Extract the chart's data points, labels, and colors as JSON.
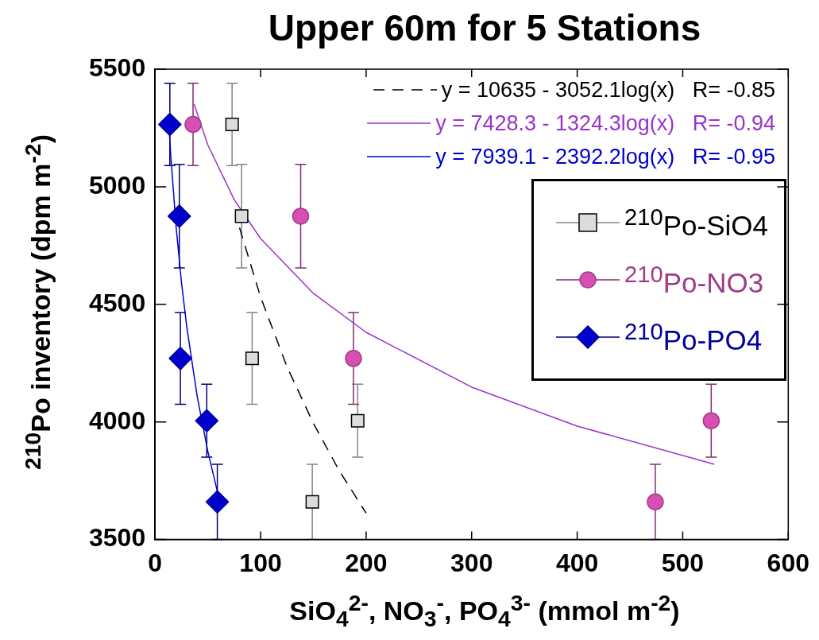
{
  "chart_data": {
    "type": "scatter",
    "title": "Upper 60m for 5 Stations",
    "xlabel": "SiO$_{4}$$^{2-}$, NO$_{3}$$^{-}$, PO$_{4}$$^{3-}$ (mmol m$^{-2}$)",
    "ylabel": "$^{210}$Po inventory (dpm m$^{-2}$)",
    "xlim": [
      0,
      600
    ],
    "xticks": [
      0,
      100,
      200,
      300,
      400,
      500,
      600
    ],
    "ylim": [
      3500,
      5500
    ],
    "yticks": [
      3500,
      4000,
      4500,
      5000,
      5500
    ],
    "legend": "right",
    "series": [
      {
        "name": "$^{210}$Po-SiO4",
        "color": "#dcdcdc",
        "marker": "square",
        "x": [
          73,
          82,
          92,
          192,
          149
        ],
        "values": [
          5265,
          4875,
          4270,
          4005,
          3660
        ],
        "errors": [
          175,
          220,
          195,
          155,
          160
        ]
      },
      {
        "name": "$^{210}$Po-NO3",
        "color": "#d84fb4",
        "marker": "circle",
        "x": [
          36,
          138,
          188,
          527,
          474
        ],
        "values": [
          5265,
          4875,
          4270,
          4005,
          3660
        ],
        "errors": [
          175,
          220,
          195,
          155,
          160
        ]
      },
      {
        "name": "$^{210}$Po-PO4",
        "color": "#0000cc",
        "marker": "diamond",
        "x": [
          14,
          23,
          24,
          49,
          59
        ],
        "values": [
          5265,
          4875,
          4270,
          4005,
          3660
        ],
        "errors": [
          175,
          220,
          195,
          155,
          160
        ]
      },
      {
        "type": "line",
        "name": "y = 10635 - 3052.1log(x)   R= -0.85",
        "color": "#000000",
        "line_style": "dashed",
        "marker": "none",
        "x": [
          80,
          100,
          125,
          150,
          175,
          200
        ],
        "values": [
          4826,
          4531,
          4235,
          3994,
          3789,
          3612
        ]
      },
      {
        "type": "line",
        "name": "y = 7428.3 - 1324.3log(x)   R= -0.94",
        "color": "#9933cc",
        "line_style": "solid",
        "marker": "none",
        "x": [
          37,
          50,
          75,
          100,
          150,
          200,
          300,
          400,
          530
        ],
        "values": [
          5352,
          5178,
          4945,
          4780,
          4547,
          4381,
          4148,
          3982,
          3820
        ]
      },
      {
        "type": "line",
        "name": "y = 7939.1 - 2392.2log(x)   R= -0.95",
        "color": "#0000cc",
        "line_style": "solid",
        "marker": "none",
        "x": [
          13,
          15,
          20,
          25,
          30,
          40,
          50,
          60
        ],
        "values": [
          5274,
          5126,
          4827,
          4595,
          4406,
          4107,
          3875,
          3686
        ]
      }
    ]
  }
}
